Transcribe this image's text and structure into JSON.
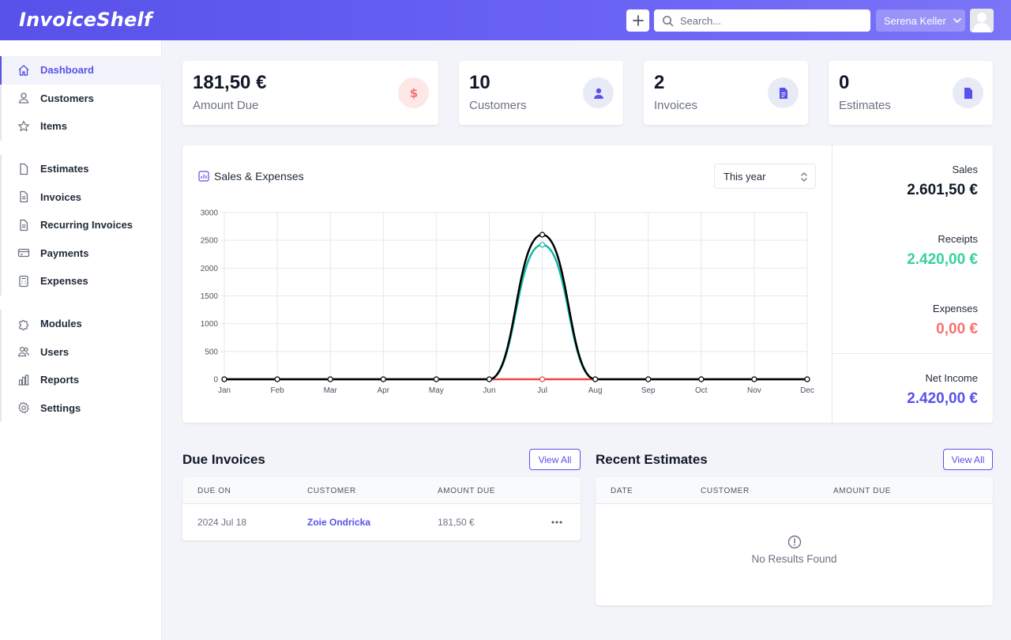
{
  "app": {
    "logo": "InvoiceShelf"
  },
  "header": {
    "search_placeholder": "Search...",
    "user_name": "Serena Keller"
  },
  "sidebar": {
    "groups": [
      [
        {
          "label": "Dashboard",
          "icon": "home-icon",
          "active": true
        },
        {
          "label": "Customers",
          "icon": "user-icon"
        },
        {
          "label": "Items",
          "icon": "star-icon"
        }
      ],
      [
        {
          "label": "Estimates",
          "icon": "document-icon"
        },
        {
          "label": "Invoices",
          "icon": "document-text-icon"
        },
        {
          "label": "Recurring Invoices",
          "icon": "document-text-icon"
        },
        {
          "label": "Payments",
          "icon": "credit-card-icon"
        },
        {
          "label": "Expenses",
          "icon": "calculator-icon"
        }
      ],
      [
        {
          "label": "Modules",
          "icon": "puzzle-icon"
        },
        {
          "label": "Users",
          "icon": "users-icon"
        },
        {
          "label": "Reports",
          "icon": "chart-bar-icon"
        },
        {
          "label": "Settings",
          "icon": "cog-icon"
        }
      ]
    ]
  },
  "stats": {
    "amount_due": {
      "value": "181,50 €",
      "label": "Amount Due",
      "icon": "dollar-icon",
      "color": "#f87171"
    },
    "customers": {
      "value": "10",
      "label": "Customers",
      "icon": "user-icon",
      "color": "#5851ea"
    },
    "invoices": {
      "value": "2",
      "label": "Invoices",
      "icon": "document-text-icon",
      "color": "#5851ea"
    },
    "estimates": {
      "value": "0",
      "label": "Estimates",
      "icon": "document-icon",
      "color": "#5851ea"
    }
  },
  "chart_section": {
    "title": "Sales & Expenses",
    "period": "This year"
  },
  "summary": {
    "sales_label": "Sales",
    "sales_value": "2.601,50 €",
    "receipts_label": "Receipts",
    "receipts_value": "2.420,00 €",
    "expenses_label": "Expenses",
    "expenses_value": "0,00 €",
    "net_income_label": "Net Income",
    "net_income_value": "2.420,00 €",
    "colors": {
      "sales": "#111827",
      "receipts": "#34d399",
      "expenses": "#f87171",
      "net_income": "#5851ea"
    }
  },
  "chart_data": {
    "type": "line",
    "categories": [
      "Jan",
      "Feb",
      "Mar",
      "Apr",
      "May",
      "Jun",
      "Jul",
      "Aug",
      "Sep",
      "Oct",
      "Nov",
      "Dec"
    ],
    "ylim": [
      0,
      3000
    ],
    "yticks": [
      "0",
      "500",
      "1000",
      "1500",
      "2000",
      "2500",
      "3000"
    ],
    "grid": true,
    "series": [
      {
        "values": [
          0,
          0,
          0,
          0,
          0,
          0,
          2601.5,
          0,
          0,
          0,
          0,
          0
        ],
        "color": "#000000"
      },
      {
        "values": [
          0,
          0,
          0,
          0,
          0,
          0,
          2420,
          0,
          0,
          0,
          0,
          0
        ],
        "color": "#14b8a6"
      },
      {
        "values": [
          0,
          0,
          0,
          0,
          0,
          0,
          0,
          0,
          0,
          0,
          0,
          0
        ],
        "color": "#ef4444"
      }
    ]
  },
  "due_invoices": {
    "title": "Due Invoices",
    "view_all": "View All",
    "columns": [
      "Due On",
      "Customer",
      "Amount Due"
    ],
    "rows": [
      {
        "due_on": "2024 Jul 18",
        "customer": "Zoie Ondricka",
        "amount_due": "181,50 €"
      }
    ]
  },
  "recent_estimates": {
    "title": "Recent Estimates",
    "view_all": "View All",
    "columns": [
      "Date",
      "Customer",
      "Amount Due"
    ],
    "empty_text": "No Results Found"
  }
}
